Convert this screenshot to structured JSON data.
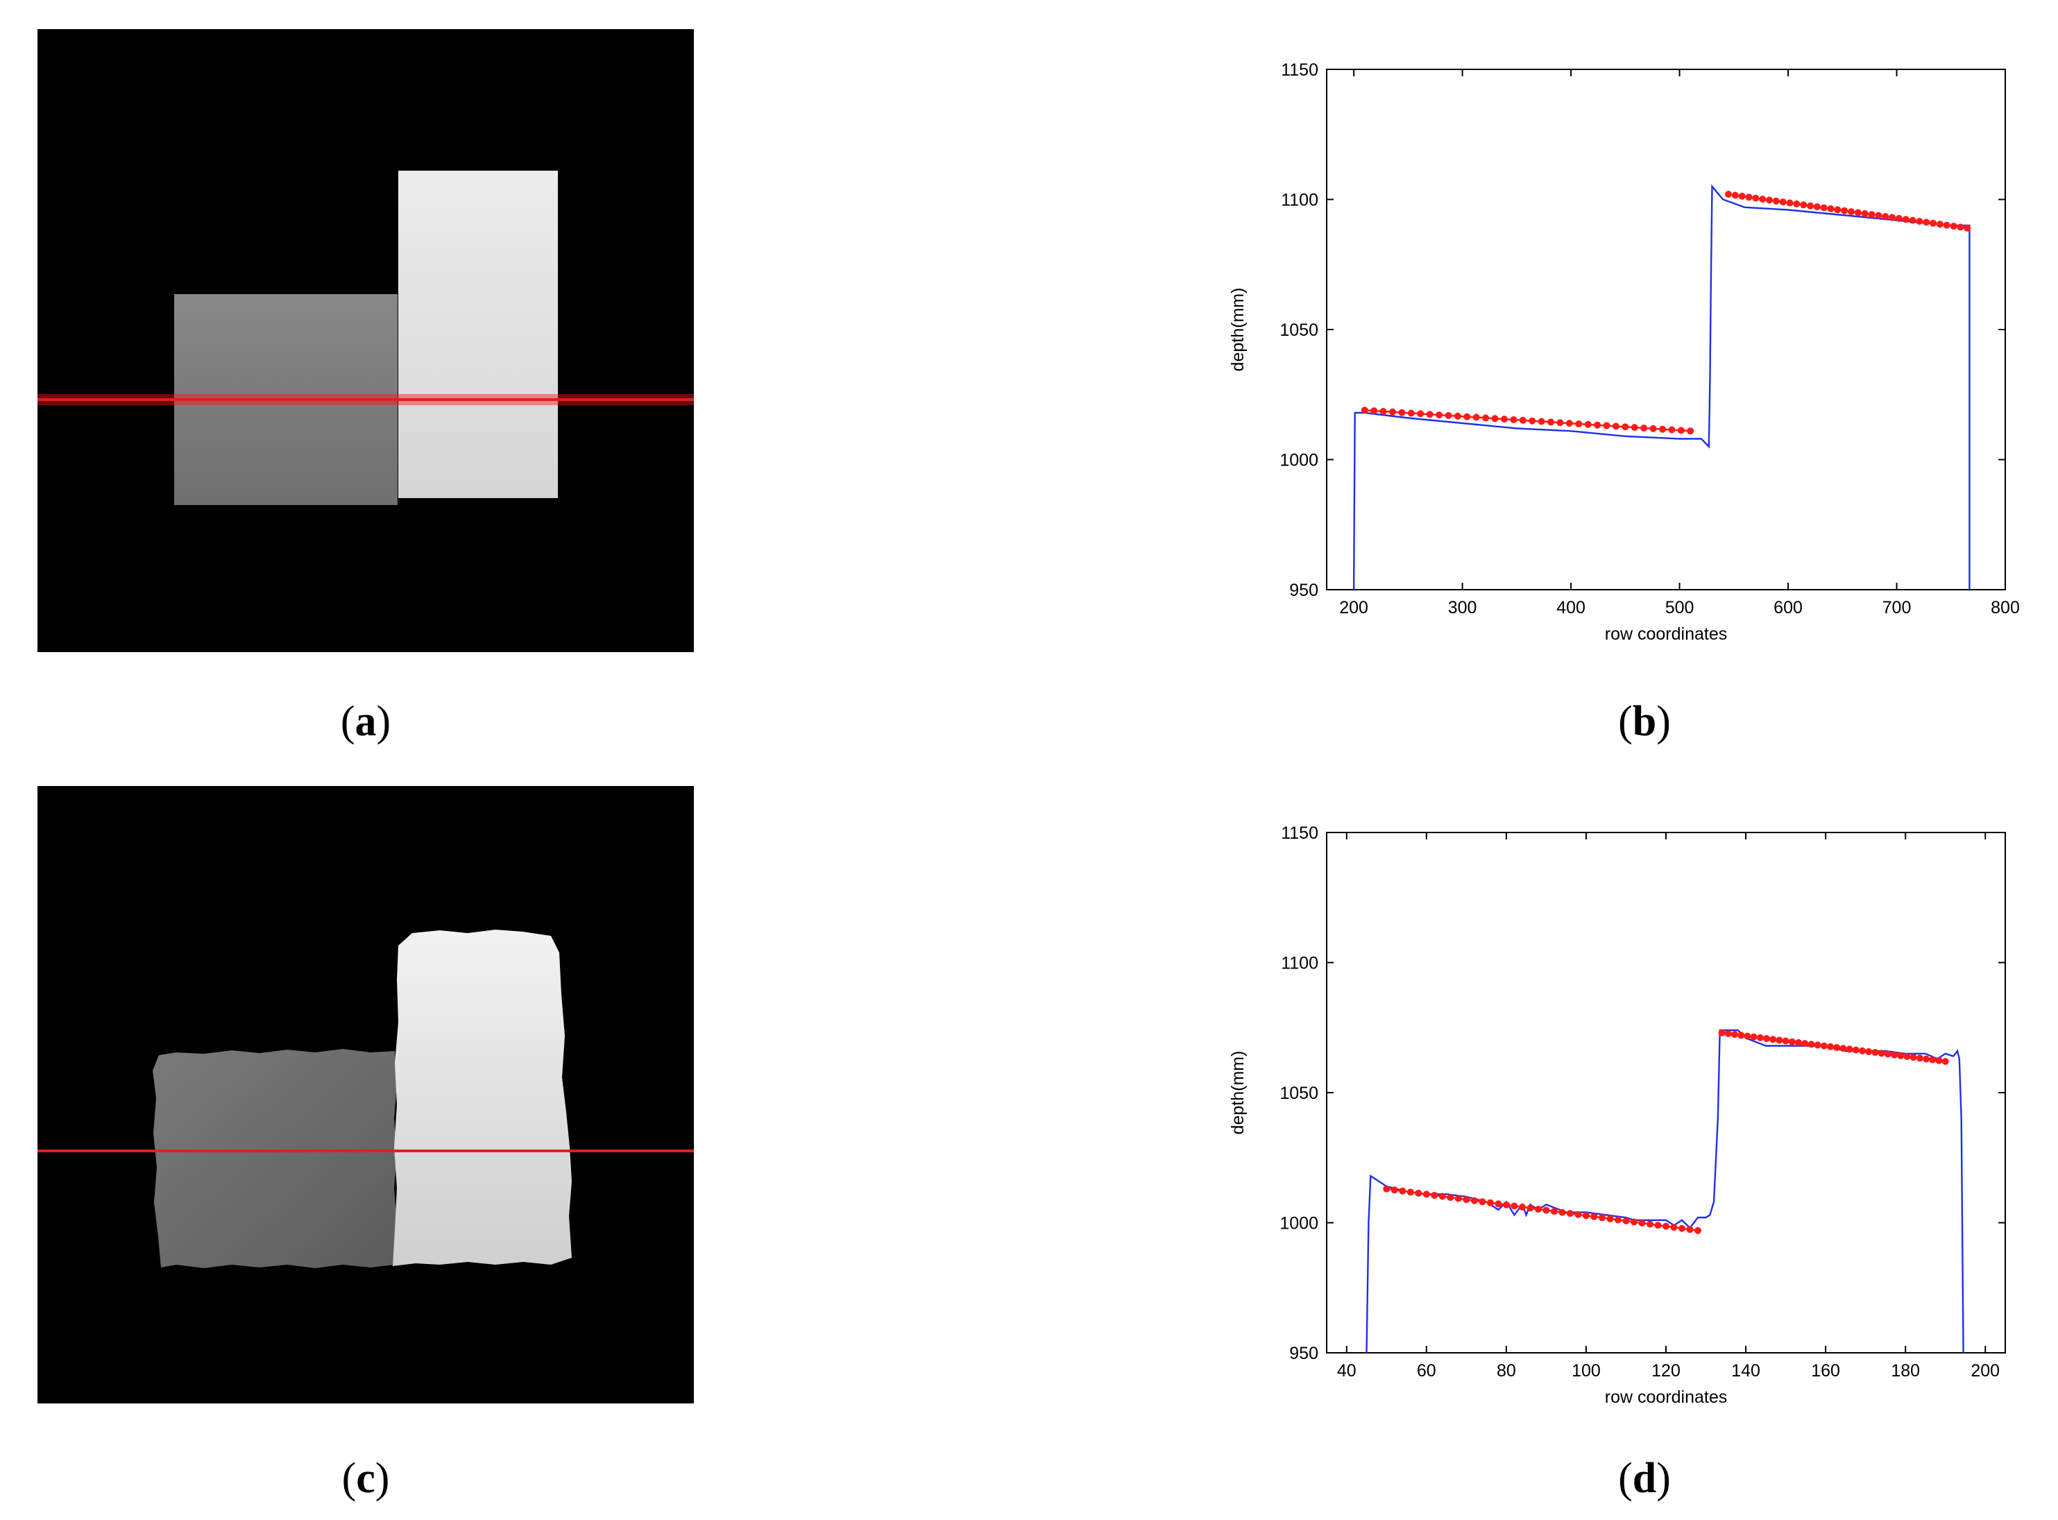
{
  "captions": {
    "a": {
      "open": "(",
      "letter": "a",
      "close": ")"
    },
    "b": {
      "open": "(",
      "letter": "b",
      "close": ")"
    },
    "c": {
      "open": "(",
      "letter": "c",
      "close": ")"
    },
    "d": {
      "open": "(",
      "letter": "d",
      "close": ")"
    }
  },
  "colors": {
    "background": "#000000",
    "scan_line": "#e0201e",
    "measured_line": "#1f2fe8",
    "fitted_points": "#ff1a1a"
  },
  "depth_images": [
    {
      "panel": "a",
      "scan_line": true,
      "surface_gray_left": "#7c7c7c",
      "surface_gray_right": "#e2e2e2",
      "edge": "smooth"
    },
    {
      "panel": "c",
      "scan_line": true,
      "surface_gray_left": "#6a6a6a",
      "surface_gray_right": "#d8d8d8",
      "edge": "ragged"
    }
  ],
  "chart_data": [
    {
      "panel": "b",
      "type": "line",
      "xlabel": "row coordinates",
      "ylabel": "depth(mm)",
      "xlim": [
        175,
        800
      ],
      "ylim": [
        950,
        1150
      ],
      "xticks": [
        200,
        300,
        400,
        500,
        600,
        700,
        800
      ],
      "yticks": [
        950,
        1000,
        1050,
        1100,
        1150
      ],
      "grid": false,
      "series": [
        {
          "style": "line",
          "x": [
            200,
            201,
            210,
            250,
            300,
            350,
            400,
            450,
            500,
            520,
            527,
            528,
            529,
            530,
            540,
            560,
            600,
            650,
            700,
            750,
            766,
            767,
            767
          ],
          "y": [
            950,
            1018,
            1018,
            1016,
            1014,
            1012,
            1011,
            1009,
            1008,
            1008,
            1005,
            1030,
            1070,
            1105,
            1100,
            1097,
            1096,
            1094,
            1092,
            1090,
            1090,
            1090,
            950
          ]
        },
        {
          "style": "markers",
          "segments": [
            {
              "x_start": 210,
              "x_end": 510,
              "y_start": 1019,
              "y_end": 1011,
              "count": 36
            },
            {
              "x_start": 545,
              "x_end": 765,
              "y_start": 1102,
              "y_end": 1089,
              "count": 36
            }
          ]
        }
      ]
    },
    {
      "panel": "d",
      "type": "line",
      "xlabel": "row coordinates",
      "ylabel": "depth(mm)",
      "xlim": [
        35,
        205
      ],
      "ylim": [
        950,
        1150
      ],
      "xticks": [
        40,
        60,
        80,
        100,
        120,
        140,
        160,
        180,
        200
      ],
      "yticks": [
        950,
        1000,
        1050,
        1100,
        1150
      ],
      "grid": false,
      "series": [
        {
          "style": "line",
          "x": [
            45,
            45.5,
            46,
            48,
            50,
            55,
            60,
            65,
            70,
            75,
            78,
            80,
            82,
            84,
            85,
            86,
            88,
            90,
            95,
            100,
            105,
            110,
            112,
            115,
            118,
            120,
            122,
            124,
            126,
            128,
            130,
            131,
            132,
            133,
            133.5,
            134,
            136,
            138,
            140,
            145,
            150,
            155,
            160,
            165,
            170,
            175,
            180,
            185,
            188,
            190,
            192,
            193,
            193.5,
            194,
            194.5
          ],
          "y": [
            950,
            1000,
            1018,
            1016,
            1014,
            1012,
            1011,
            1011,
            1010,
            1008,
            1005,
            1008,
            1003,
            1007,
            1003,
            1007,
            1005,
            1007,
            1004,
            1004,
            1003,
            1002,
            1001,
            1001,
            1001,
            1001,
            999,
            1001,
            998,
            1002,
            1002,
            1003,
            1008,
            1040,
            1074,
            1074,
            1074,
            1074,
            1071,
            1068,
            1068,
            1068,
            1068,
            1066,
            1066,
            1066,
            1065,
            1065,
            1063,
            1065,
            1064,
            1066,
            1063,
            1040,
            950
          ]
        },
        {
          "style": "markers",
          "segments": [
            {
              "x_start": 50,
              "x_end": 128,
              "y_start": 1013,
              "y_end": 997,
              "count": 40
            },
            {
              "x_start": 134,
              "x_end": 190,
              "y_start": 1073,
              "y_end": 1062,
              "count": 36
            }
          ]
        }
      ]
    }
  ]
}
